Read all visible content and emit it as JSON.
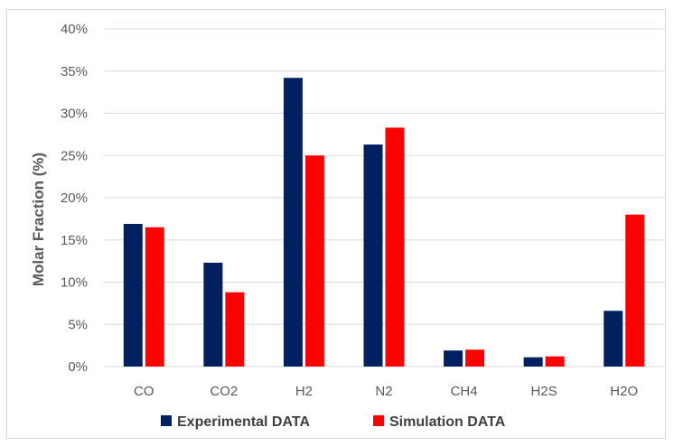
{
  "chart_data": {
    "type": "bar",
    "categories": [
      "CO",
      "CO2",
      "H2",
      "N2",
      "CH4",
      "H2S",
      "H2O"
    ],
    "series": [
      {
        "name": "Experimental DATA",
        "color": "#002060",
        "values": [
          16.9,
          12.3,
          34.2,
          26.3,
          1.9,
          1.1,
          6.6
        ]
      },
      {
        "name": "Simulation DATA",
        "color": "#ff0000",
        "values": [
          16.5,
          8.8,
          25.0,
          28.3,
          2.0,
          1.2,
          18.0
        ]
      }
    ],
    "title": "",
    "xlabel": "",
    "ylabel": "Molar Fraction (%)",
    "ylim": [
      0,
      40
    ],
    "yticks": [
      "0%",
      "5%",
      "10%",
      "15%",
      "20%",
      "25%",
      "30%",
      "35%",
      "40%"
    ],
    "grid": true,
    "legend_position": "bottom"
  }
}
